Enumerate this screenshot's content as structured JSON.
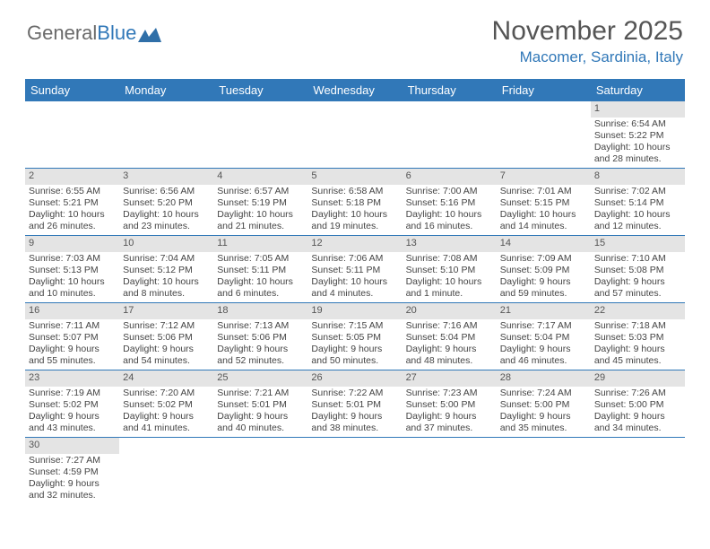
{
  "header": {
    "logo_general": "General",
    "logo_blue": "Blue",
    "month_title": "November 2025",
    "location": "Macomer, Sardinia, Italy"
  },
  "colors": {
    "accent": "#3178b8",
    "header_text": "#555555",
    "body_text": "#444444",
    "daynum_bg": "#e4e4e4"
  },
  "dayheaders": [
    "Sunday",
    "Monday",
    "Tuesday",
    "Wednesday",
    "Thursday",
    "Friday",
    "Saturday"
  ],
  "weeks": [
    [
      null,
      null,
      null,
      null,
      null,
      null,
      {
        "n": "1",
        "sr": "Sunrise: 6:54 AM",
        "ss": "Sunset: 5:22 PM",
        "dl1": "Daylight: 10 hours",
        "dl2": "and 28 minutes."
      }
    ],
    [
      {
        "n": "2",
        "sr": "Sunrise: 6:55 AM",
        "ss": "Sunset: 5:21 PM",
        "dl1": "Daylight: 10 hours",
        "dl2": "and 26 minutes."
      },
      {
        "n": "3",
        "sr": "Sunrise: 6:56 AM",
        "ss": "Sunset: 5:20 PM",
        "dl1": "Daylight: 10 hours",
        "dl2": "and 23 minutes."
      },
      {
        "n": "4",
        "sr": "Sunrise: 6:57 AM",
        "ss": "Sunset: 5:19 PM",
        "dl1": "Daylight: 10 hours",
        "dl2": "and 21 minutes."
      },
      {
        "n": "5",
        "sr": "Sunrise: 6:58 AM",
        "ss": "Sunset: 5:18 PM",
        "dl1": "Daylight: 10 hours",
        "dl2": "and 19 minutes."
      },
      {
        "n": "6",
        "sr": "Sunrise: 7:00 AM",
        "ss": "Sunset: 5:16 PM",
        "dl1": "Daylight: 10 hours",
        "dl2": "and 16 minutes."
      },
      {
        "n": "7",
        "sr": "Sunrise: 7:01 AM",
        "ss": "Sunset: 5:15 PM",
        "dl1": "Daylight: 10 hours",
        "dl2": "and 14 minutes."
      },
      {
        "n": "8",
        "sr": "Sunrise: 7:02 AM",
        "ss": "Sunset: 5:14 PM",
        "dl1": "Daylight: 10 hours",
        "dl2": "and 12 minutes."
      }
    ],
    [
      {
        "n": "9",
        "sr": "Sunrise: 7:03 AM",
        "ss": "Sunset: 5:13 PM",
        "dl1": "Daylight: 10 hours",
        "dl2": "and 10 minutes."
      },
      {
        "n": "10",
        "sr": "Sunrise: 7:04 AM",
        "ss": "Sunset: 5:12 PM",
        "dl1": "Daylight: 10 hours",
        "dl2": "and 8 minutes."
      },
      {
        "n": "11",
        "sr": "Sunrise: 7:05 AM",
        "ss": "Sunset: 5:11 PM",
        "dl1": "Daylight: 10 hours",
        "dl2": "and 6 minutes."
      },
      {
        "n": "12",
        "sr": "Sunrise: 7:06 AM",
        "ss": "Sunset: 5:11 PM",
        "dl1": "Daylight: 10 hours",
        "dl2": "and 4 minutes."
      },
      {
        "n": "13",
        "sr": "Sunrise: 7:08 AM",
        "ss": "Sunset: 5:10 PM",
        "dl1": "Daylight: 10 hours",
        "dl2": "and 1 minute."
      },
      {
        "n": "14",
        "sr": "Sunrise: 7:09 AM",
        "ss": "Sunset: 5:09 PM",
        "dl1": "Daylight: 9 hours",
        "dl2": "and 59 minutes."
      },
      {
        "n": "15",
        "sr": "Sunrise: 7:10 AM",
        "ss": "Sunset: 5:08 PM",
        "dl1": "Daylight: 9 hours",
        "dl2": "and 57 minutes."
      }
    ],
    [
      {
        "n": "16",
        "sr": "Sunrise: 7:11 AM",
        "ss": "Sunset: 5:07 PM",
        "dl1": "Daylight: 9 hours",
        "dl2": "and 55 minutes."
      },
      {
        "n": "17",
        "sr": "Sunrise: 7:12 AM",
        "ss": "Sunset: 5:06 PM",
        "dl1": "Daylight: 9 hours",
        "dl2": "and 54 minutes."
      },
      {
        "n": "18",
        "sr": "Sunrise: 7:13 AM",
        "ss": "Sunset: 5:06 PM",
        "dl1": "Daylight: 9 hours",
        "dl2": "and 52 minutes."
      },
      {
        "n": "19",
        "sr": "Sunrise: 7:15 AM",
        "ss": "Sunset: 5:05 PM",
        "dl1": "Daylight: 9 hours",
        "dl2": "and 50 minutes."
      },
      {
        "n": "20",
        "sr": "Sunrise: 7:16 AM",
        "ss": "Sunset: 5:04 PM",
        "dl1": "Daylight: 9 hours",
        "dl2": "and 48 minutes."
      },
      {
        "n": "21",
        "sr": "Sunrise: 7:17 AM",
        "ss": "Sunset: 5:04 PM",
        "dl1": "Daylight: 9 hours",
        "dl2": "and 46 minutes."
      },
      {
        "n": "22",
        "sr": "Sunrise: 7:18 AM",
        "ss": "Sunset: 5:03 PM",
        "dl1": "Daylight: 9 hours",
        "dl2": "and 45 minutes."
      }
    ],
    [
      {
        "n": "23",
        "sr": "Sunrise: 7:19 AM",
        "ss": "Sunset: 5:02 PM",
        "dl1": "Daylight: 9 hours",
        "dl2": "and 43 minutes."
      },
      {
        "n": "24",
        "sr": "Sunrise: 7:20 AM",
        "ss": "Sunset: 5:02 PM",
        "dl1": "Daylight: 9 hours",
        "dl2": "and 41 minutes."
      },
      {
        "n": "25",
        "sr": "Sunrise: 7:21 AM",
        "ss": "Sunset: 5:01 PM",
        "dl1": "Daylight: 9 hours",
        "dl2": "and 40 minutes."
      },
      {
        "n": "26",
        "sr": "Sunrise: 7:22 AM",
        "ss": "Sunset: 5:01 PM",
        "dl1": "Daylight: 9 hours",
        "dl2": "and 38 minutes."
      },
      {
        "n": "27",
        "sr": "Sunrise: 7:23 AM",
        "ss": "Sunset: 5:00 PM",
        "dl1": "Daylight: 9 hours",
        "dl2": "and 37 minutes."
      },
      {
        "n": "28",
        "sr": "Sunrise: 7:24 AM",
        "ss": "Sunset: 5:00 PM",
        "dl1": "Daylight: 9 hours",
        "dl2": "and 35 minutes."
      },
      {
        "n": "29",
        "sr": "Sunrise: 7:26 AM",
        "ss": "Sunset: 5:00 PM",
        "dl1": "Daylight: 9 hours",
        "dl2": "and 34 minutes."
      }
    ],
    [
      {
        "n": "30",
        "sr": "Sunrise: 7:27 AM",
        "ss": "Sunset: 4:59 PM",
        "dl1": "Daylight: 9 hours",
        "dl2": "and 32 minutes."
      },
      null,
      null,
      null,
      null,
      null,
      null
    ]
  ]
}
